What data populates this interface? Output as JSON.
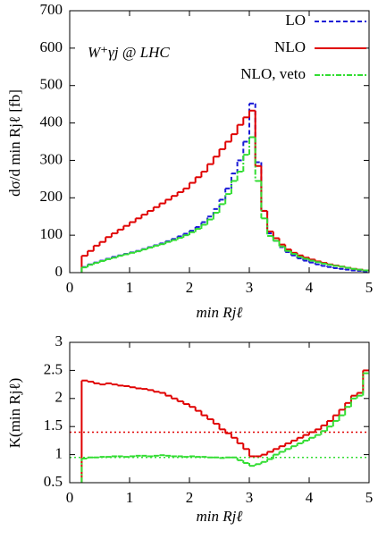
{
  "chart_data": [
    {
      "type": "histogram",
      "annotation": "W⁺γj @ LHC",
      "xlabel": "min Rjℓ",
      "ylabel": "dσ/d min Rjℓ [fb]",
      "xlim": [
        0,
        5
      ],
      "ylim": [
        0,
        700
      ],
      "xticks": [
        0,
        1,
        2,
        3,
        4,
        5
      ],
      "yticks": [
        0,
        100,
        200,
        300,
        400,
        500,
        600,
        700
      ],
      "legend": "top-right",
      "bins": [
        0.2,
        0.3,
        0.4,
        0.5,
        0.6,
        0.7,
        0.8,
        0.9,
        1.0,
        1.1,
        1.2,
        1.3,
        1.4,
        1.5,
        1.6,
        1.7,
        1.8,
        1.9,
        2.0,
        2.1,
        2.2,
        2.3,
        2.4,
        2.5,
        2.6,
        2.7,
        2.8,
        2.9,
        3.0,
        3.1,
        3.2,
        3.3,
        3.4,
        3.5,
        3.6,
        3.7,
        3.8,
        3.9,
        4.0,
        4.1,
        4.2,
        4.3,
        4.4,
        4.5,
        4.6,
        4.7,
        4.8,
        4.9,
        5.0
      ],
      "series": [
        {
          "name": "LO",
          "color": "#1a1ad6",
          "dash": "dashed",
          "values": [
            15,
            22,
            27,
            32,
            37,
            42,
            46,
            50,
            54,
            58,
            63,
            68,
            73,
            78,
            84,
            90,
            97,
            104,
            112,
            122,
            135,
            150,
            170,
            195,
            225,
            265,
            300,
            350,
            452,
            295,
            165,
            105,
            85,
            68,
            55,
            46,
            38,
            32,
            27,
            22,
            18,
            15,
            12,
            10,
            8,
            6,
            5,
            3
          ]
        },
        {
          "name": "NLO",
          "color": "#e00000",
          "dash": "solid",
          "values": [
            45,
            58,
            72,
            82,
            95,
            105,
            115,
            125,
            135,
            145,
            155,
            165,
            175,
            185,
            195,
            205,
            215,
            225,
            240,
            255,
            270,
            290,
            310,
            330,
            350,
            370,
            395,
            415,
            433,
            285,
            165,
            110,
            92,
            75,
            62,
            53,
            46,
            40,
            35,
            30,
            26,
            22,
            19,
            16,
            13,
            10,
            8,
            6
          ]
        },
        {
          "name": "NLO, veto",
          "color": "#33dd33",
          "dash": "dashdot",
          "values": [
            14,
            21,
            26,
            31,
            36,
            40,
            45,
            49,
            53,
            57,
            62,
            67,
            72,
            76,
            82,
            87,
            93,
            100,
            108,
            117,
            128,
            142,
            160,
            183,
            210,
            245,
            270,
            315,
            362,
            245,
            145,
            98,
            85,
            70,
            58,
            50,
            42,
            37,
            32,
            28,
            24,
            21,
            18,
            16,
            13,
            10,
            8,
            6
          ]
        }
      ]
    },
    {
      "type": "histogram",
      "xlabel": "min Rjℓ",
      "ylabel": "K(min Rjℓ)",
      "xlim": [
        0,
        5
      ],
      "ylim": [
        0.5,
        3
      ],
      "xticks": [
        0,
        1,
        2,
        3,
        4,
        5
      ],
      "yticks": [
        0.5,
        1,
        1.5,
        2,
        2.5,
        3
      ],
      "bins": [
        0.2,
        0.3,
        0.4,
        0.5,
        0.6,
        0.7,
        0.8,
        0.9,
        1.0,
        1.1,
        1.2,
        1.3,
        1.4,
        1.5,
        1.6,
        1.7,
        1.8,
        1.9,
        2.0,
        2.1,
        2.2,
        2.3,
        2.4,
        2.5,
        2.6,
        2.7,
        2.8,
        2.9,
        3.0,
        3.1,
        3.2,
        3.3,
        3.4,
        3.5,
        3.6,
        3.7,
        3.8,
        3.9,
        4.0,
        4.1,
        4.2,
        4.3,
        4.4,
        4.5,
        4.6,
        4.7,
        4.8,
        4.9,
        5.0
      ],
      "hlines": [
        {
          "value": 1.4,
          "color": "#e00000"
        },
        {
          "value": 0.95,
          "color": "#33dd33"
        }
      ],
      "series": [
        {
          "color": "#e00000",
          "dash": "solid",
          "values": [
            2.32,
            2.3,
            2.27,
            2.25,
            2.27,
            2.25,
            2.23,
            2.22,
            2.2,
            2.18,
            2.17,
            2.15,
            2.12,
            2.1,
            2.05,
            2.0,
            1.95,
            1.9,
            1.85,
            1.78,
            1.7,
            1.63,
            1.55,
            1.45,
            1.38,
            1.3,
            1.2,
            1.1,
            0.97,
            0.97,
            1.0,
            1.05,
            1.1,
            1.15,
            1.2,
            1.25,
            1.3,
            1.35,
            1.4,
            1.45,
            1.52,
            1.6,
            1.7,
            1.8,
            1.92,
            2.05,
            2.1,
            2.5
          ]
        },
        {
          "color": "#33dd33",
          "dash": "dashdot",
          "values": [
            0.93,
            0.95,
            0.95,
            0.96,
            0.96,
            0.97,
            0.97,
            0.96,
            0.97,
            0.98,
            0.98,
            0.97,
            0.98,
            0.99,
            0.98,
            0.97,
            0.97,
            0.96,
            0.97,
            0.96,
            0.96,
            0.95,
            0.95,
            0.94,
            0.95,
            0.95,
            0.9,
            0.85,
            0.8,
            0.83,
            0.87,
            0.92,
            1.0,
            1.05,
            1.1,
            1.15,
            1.2,
            1.25,
            1.3,
            1.35,
            1.42,
            1.5,
            1.6,
            1.7,
            1.85,
            2.0,
            2.05,
            2.45
          ]
        }
      ]
    }
  ]
}
